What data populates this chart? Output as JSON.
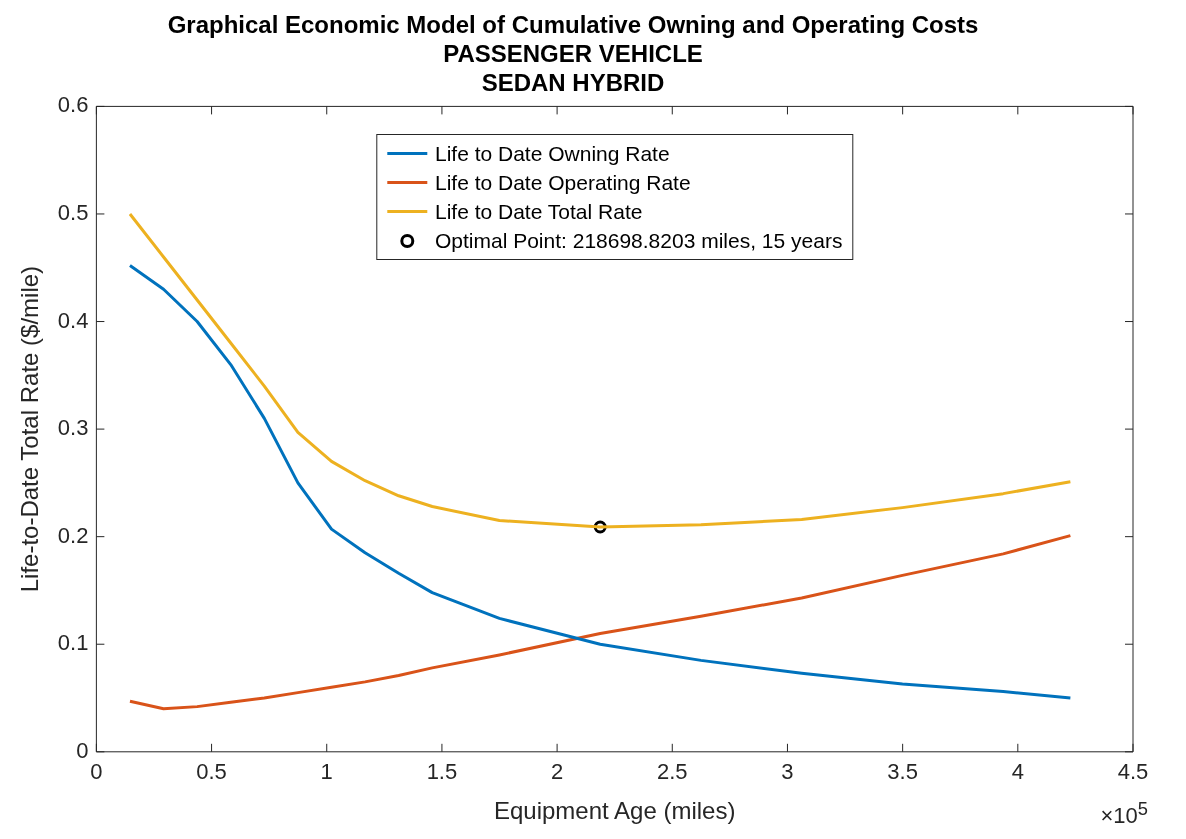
{
  "chart_data": {
    "type": "line",
    "title": "Graphical Economic Model of Cumulative Owning and Operating Costs",
    "subtitle": "PASSENGER VEHICLE\nSEDAN HYBRID",
    "xlabel": "Equipment Age (miles)",
    "ylabel": "Life-to-Date Total Rate ($/mile)",
    "x": [
      0.1458,
      0.2916,
      0.4374,
      0.5832,
      0.729,
      0.8748,
      1.0206,
      1.1664,
      1.3122,
      1.458,
      1.7496,
      2.187,
      2.6244,
      3.0618,
      3.4992,
      3.9366,
      4.2282
    ],
    "series": [
      {
        "name": "Life to Date Owning Rate",
        "color": "#0072bd",
        "values": [
          0.452,
          0.43,
          0.4,
          0.36,
          0.31,
          0.25,
          0.207,
          0.185,
          0.166,
          0.148,
          0.124,
          0.1,
          0.085,
          0.073,
          0.063,
          0.056,
          0.05
        ]
      },
      {
        "name": "Life to Date Operating Rate",
        "color": "#d95319",
        "values": [
          0.047,
          0.04,
          0.042,
          0.046,
          0.05,
          0.055,
          0.06,
          0.065,
          0.071,
          0.078,
          0.09,
          0.11,
          0.126,
          0.143,
          0.164,
          0.184,
          0.201
        ]
      },
      {
        "name": "Life to Date Total Rate",
        "color": "#edb120",
        "values": [
          0.5,
          0.46,
          0.42,
          0.38,
          0.34,
          0.297,
          0.27,
          0.252,
          0.238,
          0.228,
          0.215,
          0.209,
          0.211,
          0.216,
          0.227,
          0.24,
          0.251
        ]
      },
      {
        "name": "Optimal Point: 218698.8203 miles, 15 years",
        "type": "scatter",
        "color": "#000000",
        "x": [
          2.186988203
        ],
        "values": [
          0.209
        ],
        "marker": "circle"
      }
    ],
    "xlim": [
      0,
      4.5
    ],
    "xticks": [
      0,
      0.5,
      1,
      1.5,
      2,
      2.5,
      3,
      3.5,
      4,
      4.5
    ],
    "ylim": [
      0,
      0.6
    ],
    "yticks": [
      0,
      0.1,
      0.2,
      0.3,
      0.4,
      0.5,
      0.6
    ],
    "annotations": [
      "×10$^{5}$"
    ],
    "legend": "top",
    "grid": false
  }
}
